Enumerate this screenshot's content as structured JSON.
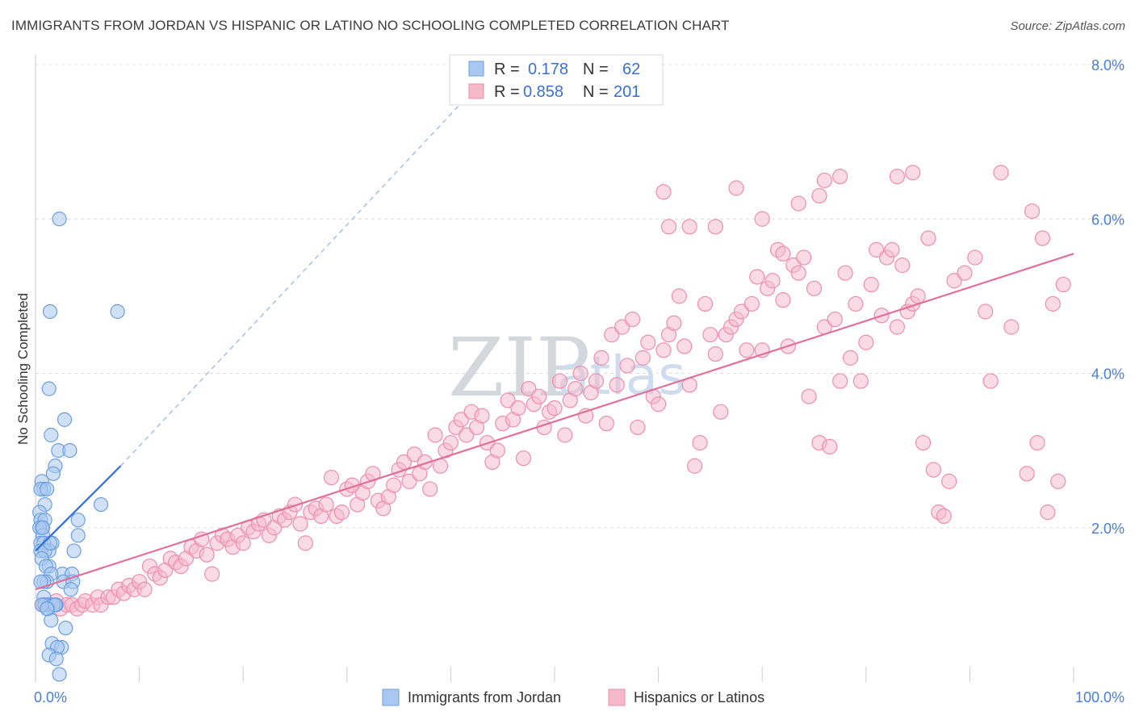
{
  "header": {
    "title": "IMMIGRANTS FROM JORDAN VS HISPANIC OR LATINO NO SCHOOLING COMPLETED CORRELATION CHART",
    "source": "Source: ZipAtlas.com"
  },
  "watermark": {
    "zip": "ZIP",
    "atlas": "atlas"
  },
  "legend_top": {
    "r_label": "R =",
    "n_label": "N =",
    "rows": [
      {
        "r": "0.178",
        "n": "62"
      },
      {
        "r": "0.858",
        "n": "201"
      }
    ]
  },
  "colors": {
    "jordan_fill": "#a9c8f0",
    "jordan_stroke": "#6a9edf",
    "jordan_line": "#2e6fd3",
    "hispanic_fill": "#f6b8cb",
    "hispanic_stroke": "#ec8eac",
    "hispanic_line": "#e0709a",
    "tick_text": "#4a7ed4",
    "grid": "#dddddd"
  },
  "chart_data": {
    "type": "scatter",
    "ylabel": "No Schooling Completed",
    "x_range": [
      0,
      100
    ],
    "y_range": [
      0,
      8
    ],
    "x_tick_labels": [
      "0.0%",
      "100.0%"
    ],
    "y_ticks": [
      2,
      4,
      6,
      8
    ],
    "y_tick_labels": [
      "2.0%",
      "4.0%",
      "6.0%",
      "8.0%"
    ],
    "grid": true,
    "legend_position": "bottom",
    "series": [
      {
        "name": "Immigrants from Jordan",
        "r": 0.178,
        "n": 62,
        "trend": {
          "x0": 0,
          "y0": 1.7,
          "x1": 8.2,
          "y1": 2.8,
          "dashed_to": [
            41,
            7.5
          ]
        },
        "points": [
          [
            2.3,
            6.0
          ],
          [
            1.4,
            4.8
          ],
          [
            7.9,
            4.8
          ],
          [
            1.3,
            3.8
          ],
          [
            2.8,
            3.4
          ],
          [
            1.5,
            3.2
          ],
          [
            2.2,
            3.0
          ],
          [
            3.3,
            3.0
          ],
          [
            1.9,
            2.8
          ],
          [
            1.7,
            2.7
          ],
          [
            0.6,
            2.6
          ],
          [
            0.8,
            2.5
          ],
          [
            0.5,
            2.5
          ],
          [
            1.1,
            2.5
          ],
          [
            6.3,
            2.3
          ],
          [
            0.9,
            2.3
          ],
          [
            0.4,
            2.2
          ],
          [
            0.5,
            2.1
          ],
          [
            0.9,
            2.1
          ],
          [
            0.6,
            2.0
          ],
          [
            0.4,
            2.0
          ],
          [
            0.7,
            1.9
          ],
          [
            4.1,
            2.1
          ],
          [
            4.1,
            1.9
          ],
          [
            0.5,
            1.8
          ],
          [
            1.6,
            1.8
          ],
          [
            0.8,
            1.8
          ],
          [
            1.3,
            1.7
          ],
          [
            0.5,
            1.7
          ],
          [
            0.9,
            1.7
          ],
          [
            0.6,
            1.6
          ],
          [
            3.7,
            1.7
          ],
          [
            1.3,
            1.5
          ],
          [
            1.0,
            1.5
          ],
          [
            2.6,
            1.4
          ],
          [
            1.5,
            1.4
          ],
          [
            3.5,
            1.4
          ],
          [
            1.1,
            1.3
          ],
          [
            0.8,
            1.3
          ],
          [
            2.7,
            1.3
          ],
          [
            3.6,
            1.3
          ],
          [
            3.4,
            1.2
          ],
          [
            0.8,
            1.1
          ],
          [
            1.3,
            1.0
          ],
          [
            0.9,
            1.0
          ],
          [
            2.0,
            1.0
          ],
          [
            1.7,
            1.0
          ],
          [
            1.2,
            0.95
          ],
          [
            1.5,
            0.8
          ],
          [
            2.9,
            0.7
          ],
          [
            1.6,
            0.5
          ],
          [
            2.5,
            0.45
          ],
          [
            2.1,
            0.45
          ],
          [
            1.3,
            0.35
          ],
          [
            2.0,
            0.3
          ],
          [
            2.3,
            0.1
          ],
          [
            0.6,
            1.0
          ],
          [
            1.9,
            1.0
          ],
          [
            1.1,
            0.95
          ],
          [
            0.7,
            2.0
          ],
          [
            1.4,
            1.8
          ],
          [
            0.5,
            1.3
          ]
        ]
      },
      {
        "name": "Hispanics or Latinos",
        "r": 0.858,
        "n": 201,
        "trend": {
          "x0": 0,
          "y0": 1.2,
          "x1": 100,
          "y1": 5.55
        },
        "points": [
          [
            0.8,
            1.0
          ],
          [
            1.3,
            1.0
          ],
          [
            2.0,
            1.05
          ],
          [
            2.4,
            0.95
          ],
          [
            3.0,
            1.0
          ],
          [
            3.5,
            1.0
          ],
          [
            4.0,
            0.95
          ],
          [
            4.5,
            1.0
          ],
          [
            4.8,
            1.05
          ],
          [
            5.5,
            1.0
          ],
          [
            6.0,
            1.1
          ],
          [
            6.3,
            1.0
          ],
          [
            7.0,
            1.1
          ],
          [
            7.5,
            1.1
          ],
          [
            8.0,
            1.2
          ],
          [
            8.5,
            1.15
          ],
          [
            9.0,
            1.25
          ],
          [
            9.5,
            1.2
          ],
          [
            10.0,
            1.3
          ],
          [
            10.5,
            1.2
          ],
          [
            11.0,
            1.5
          ],
          [
            11.5,
            1.4
          ],
          [
            12.0,
            1.35
          ],
          [
            12.5,
            1.45
          ],
          [
            13.0,
            1.6
          ],
          [
            13.5,
            1.55
          ],
          [
            14.0,
            1.5
          ],
          [
            14.5,
            1.6
          ],
          [
            15.0,
            1.75
          ],
          [
            15.5,
            1.7
          ],
          [
            16.0,
            1.85
          ],
          [
            16.5,
            1.65
          ],
          [
            17.0,
            1.4
          ],
          [
            17.5,
            1.8
          ],
          [
            18.0,
            1.9
          ],
          [
            18.5,
            1.85
          ],
          [
            19.0,
            1.75
          ],
          [
            19.5,
            1.9
          ],
          [
            20.0,
            1.8
          ],
          [
            20.5,
            2.0
          ],
          [
            21.0,
            1.95
          ],
          [
            21.5,
            2.05
          ],
          [
            22.0,
            2.1
          ],
          [
            22.5,
            1.9
          ],
          [
            23.0,
            2.0
          ],
          [
            23.5,
            2.15
          ],
          [
            24.0,
            2.1
          ],
          [
            24.5,
            2.2
          ],
          [
            25.0,
            2.3
          ],
          [
            25.5,
            2.05
          ],
          [
            26.0,
            1.8
          ],
          [
            26.5,
            2.2
          ],
          [
            27.0,
            2.25
          ],
          [
            27.5,
            2.15
          ],
          [
            28.0,
            2.3
          ],
          [
            28.5,
            2.65
          ],
          [
            29.0,
            2.15
          ],
          [
            29.5,
            2.2
          ],
          [
            30.0,
            2.5
          ],
          [
            30.5,
            2.55
          ],
          [
            31.0,
            2.3
          ],
          [
            31.5,
            2.45
          ],
          [
            32.0,
            2.6
          ],
          [
            32.5,
            2.7
          ],
          [
            33.0,
            2.35
          ],
          [
            33.5,
            2.25
          ],
          [
            34.0,
            2.4
          ],
          [
            34.5,
            2.55
          ],
          [
            35.0,
            2.75
          ],
          [
            35.5,
            2.85
          ],
          [
            36.0,
            2.6
          ],
          [
            36.5,
            2.95
          ],
          [
            37.0,
            2.7
          ],
          [
            37.5,
            2.85
          ],
          [
            38.0,
            2.5
          ],
          [
            38.5,
            3.2
          ],
          [
            39.0,
            2.8
          ],
          [
            39.5,
            3.0
          ],
          [
            40.0,
            3.1
          ],
          [
            40.5,
            3.3
          ],
          [
            41.0,
            3.4
          ],
          [
            41.5,
            3.2
          ],
          [
            42.0,
            3.5
          ],
          [
            42.5,
            3.3
          ],
          [
            43.0,
            3.45
          ],
          [
            43.5,
            3.1
          ],
          [
            44.0,
            2.85
          ],
          [
            44.5,
            3.0
          ],
          [
            45.0,
            3.35
          ],
          [
            45.5,
            3.65
          ],
          [
            46.0,
            3.4
          ],
          [
            46.5,
            3.55
          ],
          [
            47.0,
            2.9
          ],
          [
            47.5,
            3.8
          ],
          [
            48.0,
            3.6
          ],
          [
            48.5,
            3.7
          ],
          [
            49.0,
            3.3
          ],
          [
            49.5,
            3.5
          ],
          [
            50.0,
            3.55
          ],
          [
            50.5,
            3.9
          ],
          [
            51.0,
            3.2
          ],
          [
            51.5,
            3.65
          ],
          [
            52.0,
            3.8
          ],
          [
            52.5,
            4.0
          ],
          [
            53.0,
            3.45
          ],
          [
            53.5,
            3.75
          ],
          [
            54.0,
            3.9
          ],
          [
            54.5,
            4.2
          ],
          [
            55.0,
            3.35
          ],
          [
            55.5,
            4.5
          ],
          [
            56.0,
            3.85
          ],
          [
            56.5,
            4.6
          ],
          [
            57.0,
            4.1
          ],
          [
            57.5,
            4.7
          ],
          [
            58.0,
            3.3
          ],
          [
            58.5,
            4.2
          ],
          [
            59.0,
            4.4
          ],
          [
            59.5,
            3.7
          ],
          [
            60.0,
            3.6
          ],
          [
            60.5,
            4.3
          ],
          [
            61.0,
            4.5
          ],
          [
            61.5,
            4.65
          ],
          [
            62.0,
            5.0
          ],
          [
            62.5,
            4.35
          ],
          [
            63.0,
            3.85
          ],
          [
            63.5,
            2.8
          ],
          [
            64.0,
            3.1
          ],
          [
            64.5,
            4.9
          ],
          [
            65.0,
            4.5
          ],
          [
            65.5,
            4.25
          ],
          [
            66.0,
            3.5
          ],
          [
            66.5,
            4.5
          ],
          [
            67.0,
            4.6
          ],
          [
            67.5,
            4.7
          ],
          [
            68.0,
            4.8
          ],
          [
            68.5,
            4.3
          ],
          [
            69.0,
            4.9
          ],
          [
            69.5,
            5.25
          ],
          [
            70.0,
            4.3
          ],
          [
            70.5,
            5.1
          ],
          [
            71.0,
            5.2
          ],
          [
            71.5,
            5.6
          ],
          [
            72.0,
            4.95
          ],
          [
            72.5,
            4.35
          ],
          [
            73.0,
            5.4
          ],
          [
            73.5,
            5.3
          ],
          [
            74.0,
            5.5
          ],
          [
            74.5,
            3.7
          ],
          [
            75.0,
            5.1
          ],
          [
            75.5,
            3.1
          ],
          [
            76.0,
            4.6
          ],
          [
            76.5,
            3.05
          ],
          [
            77.0,
            4.7
          ],
          [
            77.5,
            3.9
          ],
          [
            78.0,
            5.3
          ],
          [
            78.5,
            4.2
          ],
          [
            79.0,
            4.9
          ],
          [
            79.5,
            3.9
          ],
          [
            80.0,
            4.4
          ],
          [
            80.5,
            5.15
          ],
          [
            81.0,
            5.6
          ],
          [
            81.5,
            4.75
          ],
          [
            82.0,
            5.5
          ],
          [
            82.5,
            5.6
          ],
          [
            83.0,
            4.6
          ],
          [
            83.5,
            5.4
          ],
          [
            84.0,
            4.8
          ],
          [
            84.5,
            4.9
          ],
          [
            85.0,
            5.0
          ],
          [
            85.5,
            3.1
          ],
          [
            86.0,
            5.75
          ],
          [
            86.5,
            2.75
          ],
          [
            87.0,
            2.2
          ],
          [
            87.5,
            2.15
          ],
          [
            88.0,
            2.6
          ],
          [
            88.5,
            5.2
          ],
          [
            76.0,
            6.5
          ],
          [
            77.5,
            6.55
          ],
          [
            60.5,
            6.35
          ],
          [
            61.0,
            5.9
          ],
          [
            63.0,
            5.9
          ],
          [
            65.5,
            5.9
          ],
          [
            70.0,
            6.0
          ],
          [
            72.0,
            5.55
          ],
          [
            73.5,
            6.2
          ],
          [
            75.5,
            6.3
          ],
          [
            83.0,
            6.55
          ],
          [
            84.5,
            6.6
          ],
          [
            67.5,
            6.4
          ],
          [
            93.0,
            6.6
          ],
          [
            96.0,
            6.1
          ],
          [
            98.0,
            4.9
          ],
          [
            99.0,
            5.15
          ],
          [
            94.0,
            4.6
          ],
          [
            91.5,
            4.8
          ],
          [
            92.0,
            3.9
          ],
          [
            95.5,
            2.7
          ],
          [
            97.5,
            2.2
          ],
          [
            96.5,
            3.1
          ],
          [
            98.5,
            2.6
          ],
          [
            90.5,
            5.5
          ],
          [
            89.5,
            5.3
          ],
          [
            97.0,
            5.75
          ]
        ]
      }
    ]
  },
  "bottom_legend": [
    "Immigrants from Jordan",
    "Hispanics or Latinos"
  ]
}
